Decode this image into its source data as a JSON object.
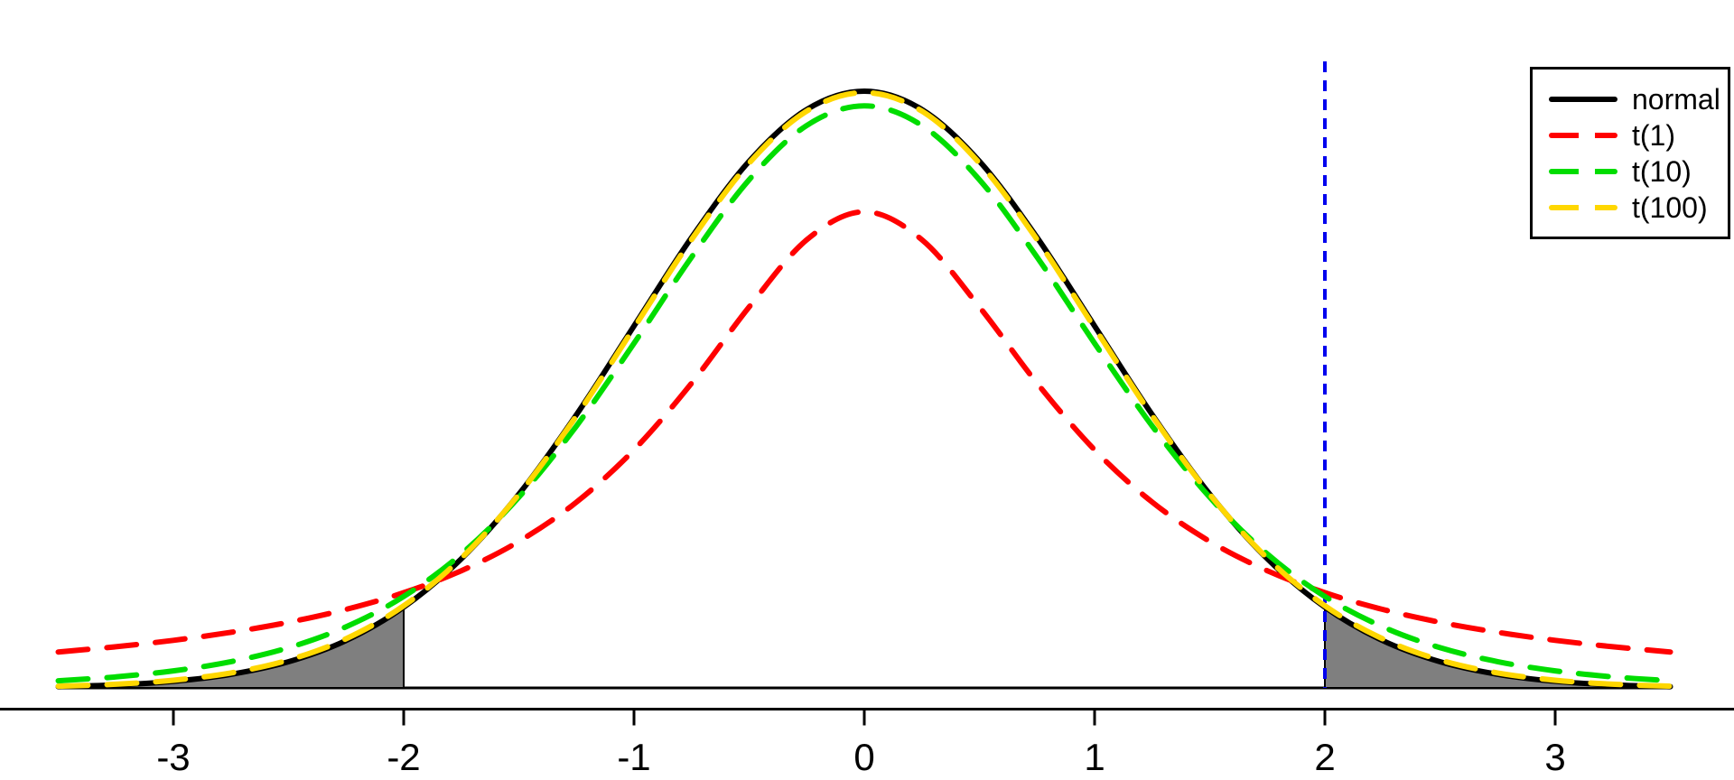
{
  "chart_data": {
    "type": "line",
    "title": "",
    "xlabel": "",
    "ylabel": "",
    "xlim": [
      -3.5,
      3.5
    ],
    "ylim": [
      0,
      0.4
    ],
    "grid": false,
    "x_ticks": [
      -3,
      -2,
      -1,
      0,
      1,
      2,
      3
    ],
    "x_tick_labels": [
      "-3",
      "-2",
      "-1",
      "0",
      "1",
      "2",
      "3"
    ],
    "x": [
      -3.5,
      -3.25,
      -3.0,
      -2.75,
      -2.5,
      -2.25,
      -2.0,
      -1.75,
      -1.5,
      -1.25,
      -1.0,
      -0.75,
      -0.5,
      -0.25,
      0.0,
      0.25,
      0.5,
      0.75,
      1.0,
      1.25,
      1.5,
      1.75,
      2.0,
      2.25,
      2.5,
      2.75,
      3.0,
      3.25,
      3.5
    ],
    "series": [
      {
        "name": "normal",
        "color": "#000000",
        "linetype": "solid",
        "values": [
          0.00087,
          0.00203,
          0.00443,
          0.00909,
          0.01753,
          0.03174,
          0.05399,
          0.08628,
          0.12952,
          0.18265,
          0.24197,
          0.30114,
          0.35207,
          0.38667,
          0.39894,
          0.38667,
          0.35207,
          0.30114,
          0.24197,
          0.18265,
          0.12952,
          0.08628,
          0.05399,
          0.03174,
          0.01753,
          0.00909,
          0.00443,
          0.00203,
          0.00087
        ]
      },
      {
        "name": "t(1)",
        "color": "#FF0000",
        "linetype": "dashed",
        "values": [
          0.02402,
          0.02753,
          0.03183,
          0.03718,
          0.0439,
          0.05251,
          0.06366,
          0.07835,
          0.09794,
          0.12422,
          0.15915,
          0.20372,
          0.25465,
          0.29958,
          0.31831,
          0.29958,
          0.25465,
          0.20372,
          0.15915,
          0.12422,
          0.09794,
          0.07835,
          0.06366,
          0.05251,
          0.0439,
          0.03718,
          0.03183,
          0.02753,
          0.02402
        ]
      },
      {
        "name": "t(10)",
        "color": "#00DD00",
        "linetype": "dashed",
        "values": [
          0.00478,
          0.00739,
          0.01142,
          0.01758,
          0.02692,
          0.04089,
          0.06114,
          0.08952,
          0.12744,
          0.1751,
          0.23036,
          0.28797,
          0.3397,
          0.376,
          0.38911,
          0.376,
          0.3397,
          0.28797,
          0.23036,
          0.1751,
          0.12744,
          0.08952,
          0.06114,
          0.04089,
          0.02692,
          0.01758,
          0.01142,
          0.00739,
          0.00478
        ]
      },
      {
        "name": "t(100)",
        "color": "#FFD700",
        "linetype": "dashed",
        "values": [
          0.00116,
          0.0025,
          0.00513,
          0.01002,
          0.01864,
          0.03287,
          0.0549,
          0.08674,
          0.12937,
          0.18188,
          0.24076,
          0.29978,
          0.3508,
          0.38559,
          0.39795,
          0.38559,
          0.3508,
          0.29978,
          0.24076,
          0.18188,
          0.12937,
          0.08674,
          0.0549,
          0.03287,
          0.01864,
          0.01002,
          0.00513,
          0.0025,
          0.00116
        ]
      }
    ],
    "vline": {
      "x": 2,
      "color": "#0000EE",
      "linetype": "dashed"
    },
    "shaded_regions": [
      {
        "from": -3.5,
        "to": -2,
        "under": "normal",
        "fill": "#7F7F7F"
      },
      {
        "from": 2,
        "to": 3.5,
        "under": "normal",
        "fill": "#7F7F7F"
      }
    ],
    "baseline_y": 0,
    "legend": {
      "position": "topright",
      "labels": [
        "normal",
        "t(1)",
        "t(10)",
        "t(100)"
      ]
    }
  }
}
